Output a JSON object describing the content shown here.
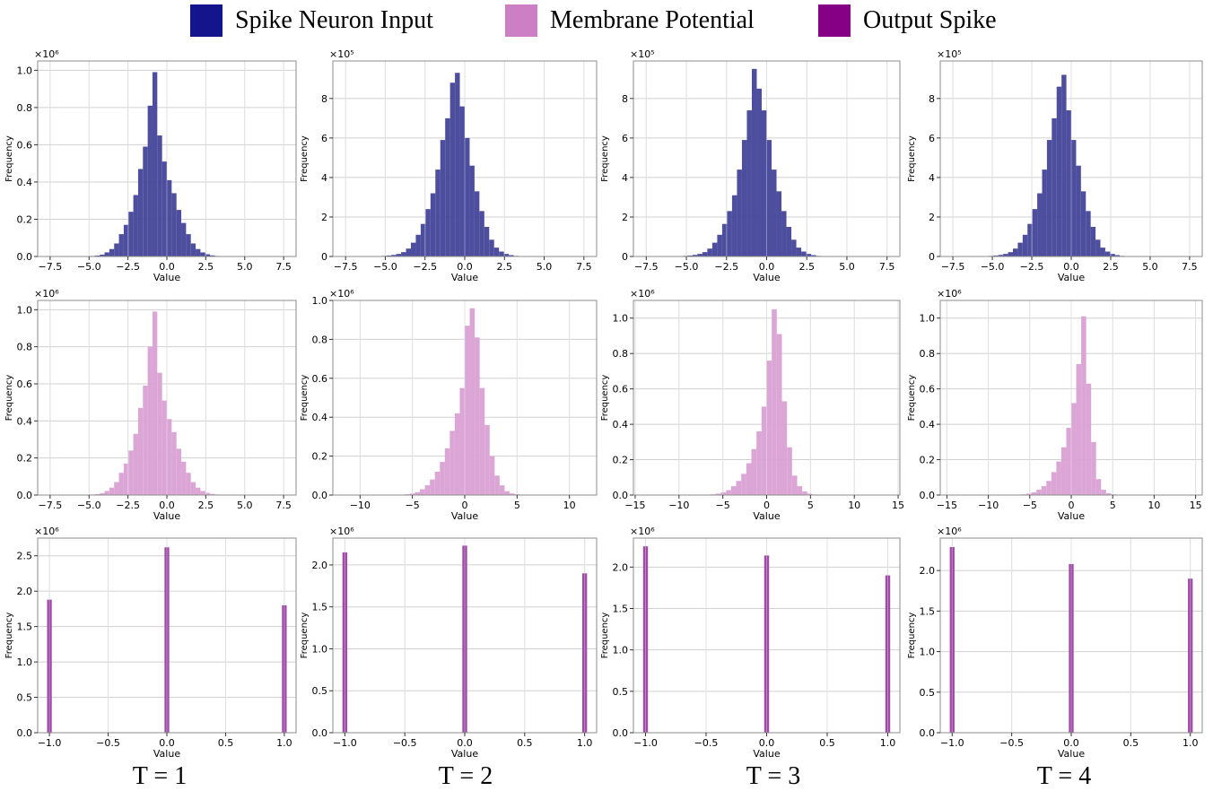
{
  "legend": {
    "items": [
      {
        "label": "Spike Neuron Input",
        "color": "#14148c"
      },
      {
        "label": "Membrane Potential",
        "color": "#cc7fc4"
      },
      {
        "label": "Output Spike",
        "color": "#850085"
      }
    ]
  },
  "columns": [
    {
      "label": "T = 1"
    },
    {
      "label": "T = 2"
    },
    {
      "label": "T = 3"
    },
    {
      "label": "T = 4"
    }
  ],
  "chart_data": [
    {
      "type": "bar",
      "title": "Spike Neuron Input, T = 1",
      "xlabel": "Value",
      "ylabel": "Frequency",
      "scale_label": "×10⁶",
      "color": "#44449a",
      "xlim": [
        -8.3,
        8.3
      ],
      "ylim": [
        0,
        1.05
      ],
      "xticks": [
        -7.5,
        -5,
        -2.5,
        0,
        2.5,
        5,
        7.5
      ],
      "xtick_labels": [
        "−7.5",
        "−5.0",
        "−2.5",
        "0.0",
        "2.5",
        "5.0",
        "7.5"
      ],
      "yticks": [
        0,
        0.2,
        0.4,
        0.6,
        0.8,
        1.0
      ],
      "ytick_labels": [
        "0.0",
        "0.2",
        "0.4",
        "0.6",
        "0.8",
        "1.0"
      ],
      "bin_start": -7.7,
      "bin_width": 0.308,
      "values": [
        0,
        0,
        0,
        0,
        0,
        0,
        0.001,
        0.001,
        0.002,
        0.003,
        0.005,
        0.01,
        0.022,
        0.04,
        0.07,
        0.12,
        0.17,
        0.24,
        0.33,
        0.47,
        0.59,
        0.81,
        0.99,
        0.65,
        0.51,
        0.41,
        0.34,
        0.25,
        0.18,
        0.12,
        0.07,
        0.04,
        0.022,
        0.012,
        0.006,
        0.003,
        0.002,
        0.001,
        0,
        0,
        0,
        0,
        0,
        0,
        0,
        0,
        0,
        0,
        0,
        0
      ]
    },
    {
      "type": "bar",
      "title": "Spike Neuron Input, T = 2",
      "xlabel": "Value",
      "ylabel": "Frequency",
      "scale_label": "×10⁵",
      "color": "#44449a",
      "xlim": [
        -8.3,
        8.3
      ],
      "ylim": [
        0,
        9.9
      ],
      "xticks": [
        -7.5,
        -5,
        -2.5,
        0,
        2.5,
        5,
        7.5
      ],
      "xtick_labels": [
        "−7.5",
        "−5.0",
        "−2.5",
        "0.0",
        "2.5",
        "5.0",
        "7.5"
      ],
      "yticks": [
        0,
        2,
        4,
        6,
        8
      ],
      "ytick_labels": [
        "0",
        "2",
        "4",
        "6",
        "8"
      ],
      "bin_start": -7.7,
      "bin_width": 0.308,
      "values": [
        0,
        0,
        0,
        0,
        0,
        0,
        0.01,
        0.02,
        0.03,
        0.05,
        0.08,
        0.13,
        0.22,
        0.4,
        0.7,
        1.1,
        1.65,
        2.4,
        3.2,
        4.4,
        5.9,
        7.0,
        8.8,
        9.3,
        7.6,
        6.0,
        4.6,
        3.3,
        2.3,
        1.5,
        0.85,
        0.45,
        0.25,
        0.13,
        0.07,
        0.03,
        0.02,
        0.01,
        0,
        0,
        0,
        0,
        0,
        0,
        0,
        0,
        0,
        0,
        0,
        0
      ]
    },
    {
      "type": "bar",
      "title": "Spike Neuron Input, T = 3",
      "xlabel": "Value",
      "ylabel": "Frequency",
      "scale_label": "×10⁵",
      "color": "#44449a",
      "xlim": [
        -8.3,
        8.3
      ],
      "ylim": [
        0,
        9.9
      ],
      "xticks": [
        -7.5,
        -5,
        -2.5,
        0,
        2.5,
        5,
        7.5
      ],
      "xtick_labels": [
        "−7.5",
        "−5.0",
        "−2.5",
        "0.0",
        "2.5",
        "5.0",
        "7.5"
      ],
      "yticks": [
        0,
        2,
        4,
        6,
        8
      ],
      "ytick_labels": [
        "0",
        "2",
        "4",
        "6",
        "8"
      ],
      "bin_start": -7.7,
      "bin_width": 0.308,
      "values": [
        0,
        0,
        0,
        0,
        0,
        0,
        0.01,
        0.02,
        0.03,
        0.05,
        0.08,
        0.13,
        0.22,
        0.4,
        0.7,
        1.1,
        1.65,
        2.3,
        3.1,
        4.4,
        5.9,
        7.4,
        9.5,
        8.5,
        7.4,
        5.9,
        4.4,
        3.3,
        2.3,
        1.5,
        0.85,
        0.45,
        0.25,
        0.13,
        0.07,
        0.03,
        0.02,
        0.01,
        0,
        0,
        0,
        0,
        0,
        0,
        0,
        0,
        0,
        0,
        0,
        0
      ]
    },
    {
      "type": "bar",
      "title": "Spike Neuron Input, T = 4",
      "xlabel": "Value",
      "ylabel": "Frequency",
      "scale_label": "×10⁵",
      "color": "#44449a",
      "xlim": [
        -8.3,
        8.3
      ],
      "ylim": [
        0,
        9.9
      ],
      "xticks": [
        -7.5,
        -5,
        -2.5,
        0,
        2.5,
        5,
        7.5
      ],
      "xtick_labels": [
        "−7.5",
        "−5.0",
        "−2.5",
        "0.0",
        "2.5",
        "5.0",
        "7.5"
      ],
      "yticks": [
        0,
        2,
        4,
        6,
        8
      ],
      "ytick_labels": [
        "0",
        "2",
        "4",
        "6",
        "8"
      ],
      "bin_start": -7.7,
      "bin_width": 0.308,
      "values": [
        0,
        0,
        0,
        0,
        0,
        0,
        0.01,
        0.02,
        0.03,
        0.05,
        0.08,
        0.13,
        0.22,
        0.4,
        0.7,
        1.1,
        1.65,
        2.4,
        3.2,
        4.4,
        5.9,
        7.0,
        8.6,
        9.2,
        7.4,
        5.9,
        4.6,
        3.3,
        2.3,
        1.5,
        0.85,
        0.45,
        0.25,
        0.13,
        0.07,
        0.03,
        0.02,
        0.01,
        0,
        0,
        0,
        0,
        0,
        0,
        0,
        0,
        0,
        0,
        0,
        0
      ]
    },
    {
      "type": "bar",
      "title": "Membrane Potential, T = 1",
      "xlabel": "Value",
      "ylabel": "Frequency",
      "scale_label": "×10⁶",
      "color": "#d9a1d4",
      "xlim": [
        -8.3,
        8.3
      ],
      "ylim": [
        0,
        1.05
      ],
      "xticks": [
        -7.5,
        -5,
        -2.5,
        0,
        2.5,
        5,
        7.5
      ],
      "xtick_labels": [
        "−7.5",
        "−5.0",
        "−2.5",
        "0.0",
        "2.5",
        "5.0",
        "7.5"
      ],
      "yticks": [
        0,
        0.2,
        0.4,
        0.6,
        0.8,
        1.0
      ],
      "ytick_labels": [
        "0.0",
        "0.2",
        "0.4",
        "0.6",
        "0.8",
        "1.0"
      ],
      "bin_start": -7.7,
      "bin_width": 0.308,
      "values": [
        0,
        0,
        0,
        0,
        0,
        0,
        0.001,
        0.001,
        0.002,
        0.003,
        0.005,
        0.01,
        0.022,
        0.04,
        0.07,
        0.12,
        0.17,
        0.24,
        0.33,
        0.47,
        0.59,
        0.8,
        0.99,
        0.66,
        0.51,
        0.41,
        0.34,
        0.25,
        0.18,
        0.12,
        0.07,
        0.04,
        0.022,
        0.012,
        0.006,
        0.003,
        0.002,
        0.001,
        0,
        0,
        0,
        0,
        0,
        0,
        0,
        0,
        0,
        0,
        0,
        0
      ]
    },
    {
      "type": "bar",
      "title": "Membrane Potential, T = 2",
      "xlabel": "Value",
      "ylabel": "Frequency",
      "scale_label": "×10⁶",
      "color": "#d9a1d4",
      "xlim": [
        -12.6,
        12.6
      ],
      "ylim": [
        0,
        1.0
      ],
      "xticks": [
        -10,
        -5,
        0,
        5,
        10
      ],
      "xtick_labels": [
        "−10",
        "−5",
        "0",
        "5",
        "10"
      ],
      "yticks": [
        0,
        0.2,
        0.4,
        0.6,
        0.8,
        1.0
      ],
      "ytick_labels": [
        "0.0",
        "0.2",
        "0.4",
        "0.6",
        "0.8",
        "1.0"
      ],
      "bin_start": -11.9,
      "bin_width": 0.476,
      "values": [
        0,
        0,
        0,
        0,
        0,
        0,
        0,
        0,
        0,
        0,
        0,
        0.001,
        0.002,
        0.004,
        0.008,
        0.015,
        0.03,
        0.05,
        0.08,
        0.12,
        0.17,
        0.24,
        0.33,
        0.42,
        0.55,
        0.87,
        0.96,
        0.81,
        0.55,
        0.36,
        0.2,
        0.1,
        0.05,
        0.02,
        0.008,
        0.004,
        0.002,
        0.001,
        0,
        0,
        0,
        0,
        0,
        0,
        0,
        0,
        0,
        0,
        0,
        0
      ]
    },
    {
      "type": "bar",
      "title": "Membrane Potential, T = 3",
      "xlabel": "Value",
      "ylabel": "Frequency",
      "scale_label": "×10⁶",
      "color": "#d9a1d4",
      "xlim": [
        -15.2,
        15.2
      ],
      "ylim": [
        0,
        1.1
      ],
      "xticks": [
        -15,
        -10,
        -5,
        0,
        5,
        10,
        15
      ],
      "xtick_labels": [
        "−15",
        "−10",
        "−5",
        "0",
        "5",
        "10",
        "15"
      ],
      "yticks": [
        0,
        0.2,
        0.4,
        0.6,
        0.8,
        1.0
      ],
      "ytick_labels": [
        "0.0",
        "0.2",
        "0.4",
        "0.6",
        "0.8",
        "1.0"
      ],
      "bin_start": -14.5,
      "bin_width": 0.58,
      "values": [
        0,
        0,
        0,
        0,
        0,
        0,
        0,
        0,
        0,
        0,
        0,
        0,
        0.001,
        0.002,
        0.004,
        0.008,
        0.015,
        0.028,
        0.05,
        0.08,
        0.12,
        0.18,
        0.26,
        0.36,
        0.5,
        0.76,
        1.05,
        0.91,
        0.53,
        0.27,
        0.11,
        0.05,
        0.02,
        0.008,
        0.003,
        0.001,
        0,
        0,
        0,
        0,
        0,
        0,
        0,
        0,
        0,
        0,
        0,
        0,
        0,
        0
      ]
    },
    {
      "type": "bar",
      "title": "Membrane Potential, T = 4",
      "xlabel": "Value",
      "ylabel": "Frequency",
      "scale_label": "×10⁶",
      "color": "#d9a1d4",
      "xlim": [
        -15.8,
        15.8
      ],
      "ylim": [
        0,
        1.1
      ],
      "xticks": [
        -15,
        -10,
        -5,
        0,
        5,
        10,
        15
      ],
      "xtick_labels": [
        "−15",
        "−10",
        "−5",
        "0",
        "5",
        "10",
        "15"
      ],
      "yticks": [
        0,
        0.2,
        0.4,
        0.6,
        0.8,
        1.0
      ],
      "ytick_labels": [
        "0.0",
        "0.2",
        "0.4",
        "0.6",
        "0.8",
        "1.0"
      ],
      "bin_start": -15,
      "bin_width": 0.6,
      "values": [
        0,
        0,
        0,
        0,
        0,
        0,
        0,
        0,
        0,
        0,
        0,
        0,
        0,
        0.001,
        0.002,
        0.004,
        0.008,
        0.015,
        0.03,
        0.05,
        0.08,
        0.13,
        0.19,
        0.27,
        0.38,
        0.52,
        0.74,
        1.01,
        0.63,
        0.3,
        0.09,
        0.03,
        0.01,
        0.004,
        0.001,
        0,
        0,
        0,
        0,
        0,
        0,
        0,
        0,
        0,
        0,
        0,
        0,
        0,
        0,
        0
      ]
    },
    {
      "type": "bar",
      "title": "Output Spike, T = 1",
      "xlabel": "Value",
      "ylabel": "Frequency",
      "scale_label": "×10⁶",
      "color": "#9e4aa6",
      "xlim": [
        -1.1,
        1.1
      ],
      "ylim": [
        0,
        2.75
      ],
      "xticks": [
        -1,
        -0.5,
        0,
        0.5,
        1
      ],
      "xtick_labels": [
        "−1.0",
        "−0.5",
        "0.0",
        "0.5",
        "1.0"
      ],
      "yticks": [
        0,
        0.5,
        1.0,
        1.5,
        2.0,
        2.5
      ],
      "ytick_labels": [
        "0.0",
        "0.5",
        "1.0",
        "1.5",
        "2.0",
        "2.5"
      ],
      "bin_start": -1.02,
      "bin_width": 0.04,
      "spike_x": [
        -1,
        0,
        1
      ],
      "spike_values": [
        1.88,
        2.62,
        1.8
      ]
    },
    {
      "type": "bar",
      "title": "Output Spike, T = 2",
      "xlabel": "Value",
      "ylabel": "Frequency",
      "scale_label": "×10⁶",
      "color": "#9e4aa6",
      "xlim": [
        -1.1,
        1.1
      ],
      "ylim": [
        0,
        2.32
      ],
      "xticks": [
        -1,
        -0.5,
        0,
        0.5,
        1
      ],
      "xtick_labels": [
        "−1.0",
        "−0.5",
        "0.0",
        "0.5",
        "1.0"
      ],
      "yticks": [
        0,
        0.5,
        1.0,
        1.5,
        2.0
      ],
      "ytick_labels": [
        "0.0",
        "0.5",
        "1.0",
        "1.5",
        "2.0"
      ],
      "bin_start": -1.02,
      "bin_width": 0.04,
      "spike_x": [
        -1,
        0,
        1
      ],
      "spike_values": [
        2.15,
        2.23,
        1.9
      ]
    },
    {
      "type": "bar",
      "title": "Output Spike, T = 3",
      "xlabel": "Value",
      "ylabel": "Frequency",
      "scale_label": "×10⁶",
      "color": "#9e4aa6",
      "xlim": [
        -1.1,
        1.1
      ],
      "ylim": [
        0,
        2.35
      ],
      "xticks": [
        -1,
        -0.5,
        0,
        0.5,
        1
      ],
      "xtick_labels": [
        "−1.0",
        "−0.5",
        "0.0",
        "0.5",
        "1.0"
      ],
      "yticks": [
        0,
        0.5,
        1.0,
        1.5,
        2.0
      ],
      "ytick_labels": [
        "0.0",
        "0.5",
        "1.0",
        "1.5",
        "2.0"
      ],
      "bin_start": -1.02,
      "bin_width": 0.04,
      "spike_x": [
        -1,
        0,
        1
      ],
      "spike_values": [
        2.25,
        2.14,
        1.9
      ]
    },
    {
      "type": "bar",
      "title": "Output Spike, T = 4",
      "xlabel": "Value",
      "ylabel": "Frequency",
      "scale_label": "×10⁶",
      "color": "#9e4aa6",
      "xlim": [
        -1.1,
        1.1
      ],
      "ylim": [
        0,
        2.4
      ],
      "xticks": [
        -1,
        -0.5,
        0,
        0.5,
        1
      ],
      "xtick_labels": [
        "−1.0",
        "−0.5",
        "0.0",
        "0.5",
        "1.0"
      ],
      "yticks": [
        0,
        0.5,
        1.0,
        1.5,
        2.0
      ],
      "ytick_labels": [
        "0.0",
        "0.5",
        "1.0",
        "1.5",
        "2.0"
      ],
      "bin_start": -1.02,
      "bin_width": 0.04,
      "spike_x": [
        -1,
        0,
        1
      ],
      "spike_values": [
        2.29,
        2.08,
        1.9
      ]
    }
  ]
}
